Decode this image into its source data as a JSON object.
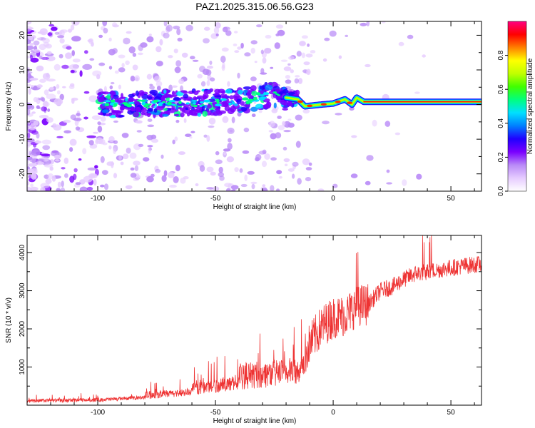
{
  "title": "PAZ1.2025.315.06.56.G23",
  "chart_data": [
    {
      "type": "heatmap",
      "xlabel": "Height of straight line (km)",
      "ylabel": "Frequency (Hz)",
      "xlim": [
        -130,
        63
      ],
      "ylim": [
        -25,
        24
      ],
      "x_ticks": [
        -100,
        -50,
        0,
        50
      ],
      "y_ticks": [
        -20,
        -10,
        0,
        10,
        20
      ],
      "x_tick_labels": [
        "-100",
        "-50",
        "0",
        "50"
      ],
      "y_tick_labels": [
        "-20",
        "-10",
        "0",
        "10",
        "20"
      ],
      "colorbar": {
        "label": "Normalized spectral amplitude",
        "range": [
          0,
          1
        ],
        "ticks": [
          0.0,
          0.2,
          0.4,
          0.6,
          0.8
        ],
        "tick_labels": [
          "0.0",
          "0.2",
          "0.4",
          "0.6",
          "0.8"
        ],
        "colormap": [
          "#ffffff",
          "#e6ccff",
          "#b98af7",
          "#7a00ff",
          "#2000ff",
          "#0080ff",
          "#00e0ff",
          "#00ff80",
          "#40ff00",
          "#c0ff00",
          "#ffff00",
          "#ff8000",
          "#ff0000",
          "#ff0080"
        ]
      },
      "ridge": [
        {
          "x": -100,
          "f": 0.0
        },
        {
          "x": -80,
          "f": 0.2
        },
        {
          "x": -60,
          "f": 0.5
        },
        {
          "x": -40,
          "f": 1.0
        },
        {
          "x": -30,
          "f": 2.5
        },
        {
          "x": -25,
          "f": 3.0
        },
        {
          "x": -20,
          "f": 2.0
        },
        {
          "x": -15,
          "f": 1.5
        },
        {
          "x": -12,
          "f": -0.5
        },
        {
          "x": -5,
          "f": 0.0
        },
        {
          "x": 0,
          "f": 0.3
        },
        {
          "x": 5,
          "f": 1.5
        },
        {
          "x": 8,
          "f": 0.0
        },
        {
          "x": 10,
          "f": 2.0
        },
        {
          "x": 13,
          "f": 0.8
        },
        {
          "x": 63,
          "f": 0.8
        }
      ]
    },
    {
      "type": "line",
      "xlabel": "Height of straight line (km)",
      "ylabel": "SNR (10 * v/v)",
      "xlim": [
        -130,
        63
      ],
      "ylim": [
        0,
        4450
      ],
      "x_ticks": [
        -100,
        -50,
        0,
        50
      ],
      "y_ticks": [
        1000,
        2000,
        3000,
        4000
      ],
      "x_tick_labels": [
        "-100",
        "-50",
        "0",
        "50"
      ],
      "y_tick_labels": [
        "1000",
        "2000",
        "3000",
        "4000"
      ],
      "series": [
        {
          "name": "SNR",
          "color": "#ee3333",
          "x": [
            -130,
            -120,
            -110,
            -100,
            -90,
            -80,
            -70,
            -60,
            -50,
            -40,
            -30,
            -20,
            -15,
            -10,
            -5,
            0,
            5,
            10,
            15,
            20,
            25,
            30,
            35,
            40,
            45,
            50,
            55,
            63
          ],
          "y": [
            100,
            120,
            130,
            150,
            200,
            260,
            330,
            420,
            550,
            650,
            750,
            850,
            950,
            1600,
            2050,
            2300,
            2350,
            2600,
            2650,
            3000,
            3100,
            3300,
            3450,
            3500,
            3550,
            3600,
            3650,
            3700
          ]
        }
      ]
    }
  ]
}
